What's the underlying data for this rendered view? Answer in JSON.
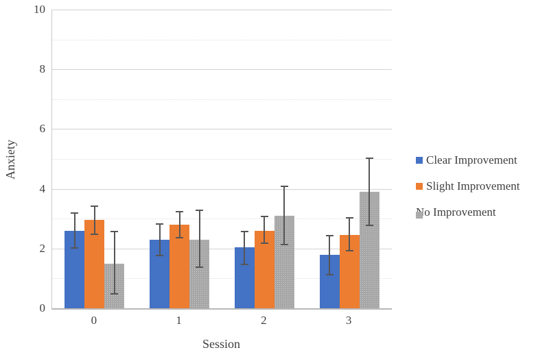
{
  "figure": {
    "background": "#ffffff",
    "text_color": "#3f3f3f"
  },
  "chart_data": {
    "type": "bar",
    "title": "",
    "xlabel": "Session",
    "ylabel": "Anxiety",
    "ylim": [
      0,
      10
    ],
    "ytick_step": 2,
    "yticks": [
      "0",
      "2",
      "4",
      "6",
      "8",
      "10"
    ],
    "gridline_step": 1,
    "grid": "on",
    "legend_position": "right",
    "categories": [
      "0",
      "1",
      "2",
      "3"
    ],
    "series": [
      {
        "name": "Clear Improvement",
        "color": "#4472C4",
        "pattern": false,
        "values": [
          2.6,
          2.3,
          2.05,
          1.8
        ],
        "error_low": [
          2.0,
          1.75,
          1.45,
          1.1
        ],
        "error_high": [
          3.2,
          2.85,
          2.6,
          2.45
        ]
      },
      {
        "name": "Slight Improvement",
        "color": "#ED7D31",
        "pattern": false,
        "values": [
          2.95,
          2.8,
          2.6,
          2.45
        ],
        "error_low": [
          2.45,
          2.35,
          2.15,
          1.9
        ],
        "error_high": [
          3.45,
          3.25,
          3.1,
          3.05
        ]
      },
      {
        "name": "No Improvement",
        "color": "#A6A6A6",
        "pattern": true,
        "values": [
          1.5,
          2.3,
          3.1,
          3.9
        ],
        "error_low": [
          0.45,
          1.35,
          2.1,
          2.75
        ],
        "error_high": [
          2.6,
          3.3,
          4.1,
          5.05
        ]
      }
    ]
  },
  "colors": {
    "error_bar": "#555555",
    "gridline_major": "#d2d2d2",
    "gridline_minor": "#e0e0e0",
    "axis_line": "#b7b7b7"
  }
}
